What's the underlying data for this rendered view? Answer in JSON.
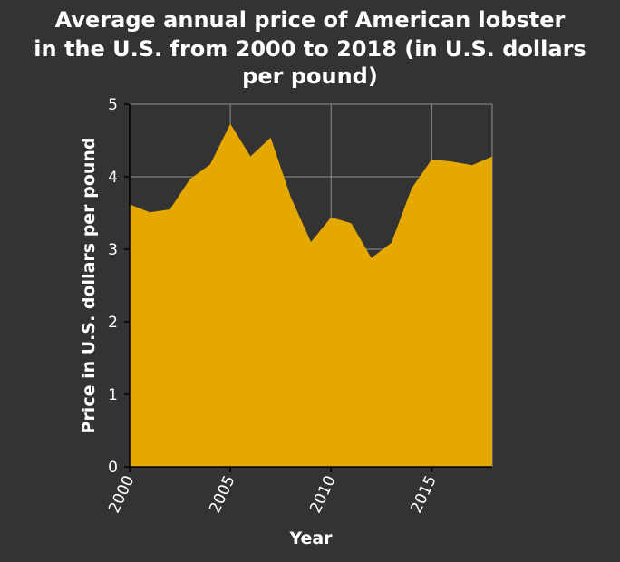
{
  "chart_data": {
    "type": "area",
    "title_lines": [
      "Average annual price of American lobster",
      "in the U.S. from 2000 to 2018 (in U.S. dollars",
      "per pound)"
    ],
    "xlabel": "Year",
    "ylabel": "Price in U.S. dollars per pound",
    "xlim": [
      2000,
      2018
    ],
    "ylim": [
      0,
      5
    ],
    "x_ticks": [
      2000,
      2005,
      2010,
      2015
    ],
    "y_ticks": [
      0,
      1,
      2,
      3,
      4,
      5
    ],
    "grid": true,
    "colors": {
      "background": "#333333",
      "area": "#e5a800",
      "grid": "#8c8c8c",
      "text": "#ffffff"
    },
    "series": [
      {
        "x": [
          2000,
          2001,
          2002,
          2003,
          2004,
          2005,
          2006,
          2007,
          2008,
          2009,
          2010,
          2011,
          2012,
          2013,
          2014,
          2015,
          2016,
          2017,
          2018
        ],
        "values": [
          3.62,
          3.51,
          3.55,
          3.97,
          4.17,
          4.73,
          4.28,
          4.54,
          3.72,
          3.1,
          3.44,
          3.36,
          2.88,
          3.09,
          3.84,
          4.24,
          4.21,
          4.16,
          4.28
        ]
      }
    ]
  }
}
